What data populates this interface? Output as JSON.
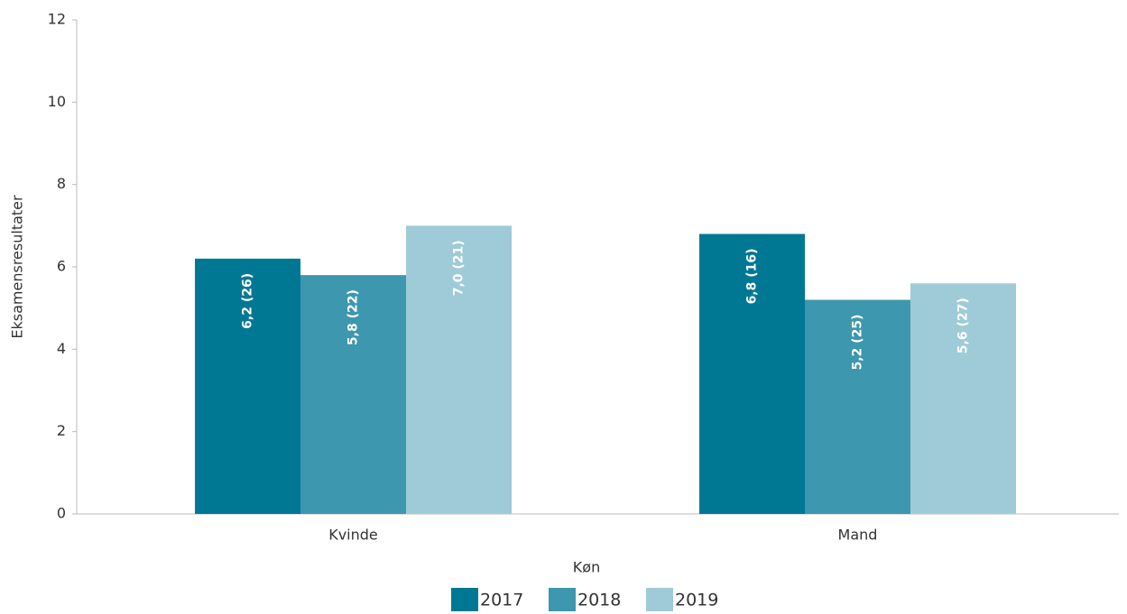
{
  "chart_data": {
    "type": "bar",
    "x_label": "Køn",
    "y_label": "Eksamensresultater",
    "categories": [
      "Kvinde",
      "Mand"
    ],
    "series": [
      {
        "name": "2017",
        "color": "#007894",
        "values": [
          6.2,
          6.8
        ],
        "value_labels": [
          "6,2 (26)",
          "6,8 (16)"
        ]
      },
      {
        "name": "2018",
        "color": "#3d97ae",
        "values": [
          5.8,
          5.2
        ],
        "value_labels": [
          "5,8 (22)",
          "5,2 (25)"
        ]
      },
      {
        "name": "2019",
        "color": "#9ecbd7",
        "values": [
          7.0,
          5.6
        ],
        "value_labels": [
          "7,0 (21)",
          "5,6 (27)"
        ]
      }
    ],
    "ylim": [
      0,
      12
    ],
    "yticks": [
      0,
      2,
      4,
      6,
      8,
      10,
      12
    ],
    "grid": false,
    "legend": "bottom"
  }
}
